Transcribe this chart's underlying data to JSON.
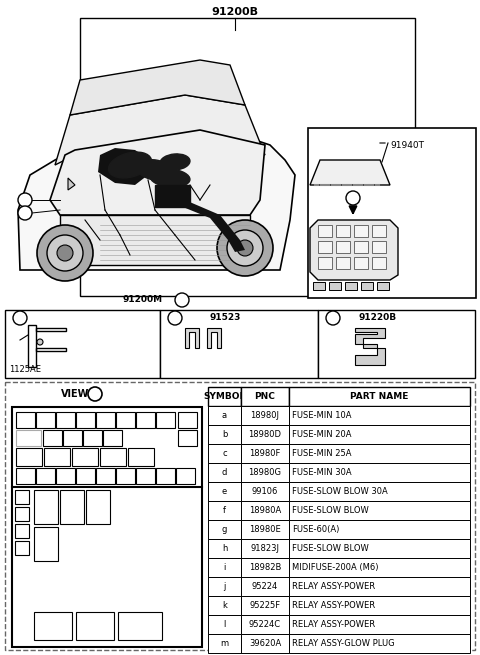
{
  "bg_color": "#ffffff",
  "part_number_main": "91200B",
  "part_number_m": "91200M",
  "part_number_c_label": "91220B",
  "part_number_b_label": "91523",
  "part_number_940": "91940T",
  "part_number_a_detail": "1125AE",
  "table_headers": [
    "SYMBOL",
    "PNC",
    "PART NAME"
  ],
  "table_rows": [
    [
      "a",
      "18980J",
      "FUSE-MIN 10A"
    ],
    [
      "b",
      "18980D",
      "FUSE-MIN 20A"
    ],
    [
      "c",
      "18980F",
      "FUSE-MIN 25A"
    ],
    [
      "d",
      "18980G",
      "FUSE-MIN 30A"
    ],
    [
      "e",
      "99106",
      "FUSE-SLOW BLOW 30A"
    ],
    [
      "f",
      "18980A",
      "FUSE-SLOW BLOW"
    ],
    [
      "g",
      "18980E",
      "FUSE-60(A)"
    ],
    [
      "h",
      "91823J",
      "FUSE-SLOW BLOW"
    ],
    [
      "i",
      "18982B",
      "MIDIFUSE-200A (M6)"
    ],
    [
      "j",
      "95224",
      "RELAY ASSY-POWER"
    ],
    [
      "k",
      "95225F",
      "RELAY ASSY-POWER"
    ],
    [
      "l",
      "95224C",
      "RELAY ASSY-POWER"
    ],
    [
      "m",
      "39620A",
      "RELAY ASSY-GLOW PLUG"
    ]
  ]
}
